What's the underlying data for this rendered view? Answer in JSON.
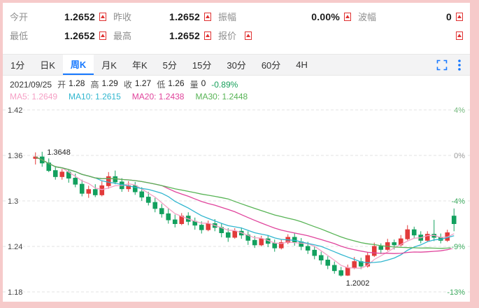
{
  "colors": {
    "frame_bg": "#f6caca",
    "accent_blue": "#1678ff",
    "marker_red": "#e03131",
    "up": "#e23b3b",
    "down": "#12a05e",
    "grid": "#e3e3e3",
    "change_green": "#16a05a"
  },
  "quotes": {
    "rows": [
      {
        "cells": [
          {
            "label": "今开",
            "value": "1.2652",
            "marker": true
          },
          {
            "label": "昨收",
            "value": "1.2652",
            "marker": true
          },
          {
            "label": "振幅",
            "value": "0.00%",
            "marker": true
          },
          {
            "label": "波幅",
            "value": "0",
            "marker": true
          }
        ],
        "end_marker": false
      },
      {
        "cells": [
          {
            "label": "最低",
            "value": "1.2652",
            "marker": true
          },
          {
            "label": "最高",
            "value": "1.2652",
            "marker": true
          },
          {
            "label": "报价",
            "value": "",
            "marker": true
          }
        ],
        "end_marker": true
      }
    ]
  },
  "tabs": {
    "items": [
      "1分",
      "日K",
      "周K",
      "月K",
      "年K",
      "5分",
      "15分",
      "30分",
      "60分",
      "4H"
    ],
    "active_index": 2
  },
  "info": {
    "date": "2021/09/25",
    "fields": [
      {
        "label": "开",
        "value": "1.28"
      },
      {
        "label": "高",
        "value": "1.29"
      },
      {
        "label": "收",
        "value": "1.27"
      },
      {
        "label": "低",
        "value": "1.26"
      },
      {
        "label": "量",
        "value": "0"
      }
    ],
    "change": "-0.89%"
  },
  "ma_legend": [
    {
      "label": "MA5:",
      "value": "1.2649",
      "color": "#f5a0c5"
    },
    {
      "label": "MA10:",
      "value": "1.2615",
      "color": "#30b6cf"
    },
    {
      "label": "MA20:",
      "value": "1.2438",
      "color": "#e0449c"
    },
    {
      "label": "MA30:",
      "value": "1.2448",
      "color": "#58b456"
    }
  ],
  "chart_data": {
    "type": "candlestick",
    "title": "周K (weekly candles)",
    "y_axis_left": [
      "1.42",
      "1.36",
      "1.3",
      "1.24",
      "1.18"
    ],
    "y_axis_right": [
      {
        "text": "4%",
        "color": "#74b97e"
      },
      {
        "text": "0%",
        "color": "#9a9a9a"
      },
      {
        "text": "-4%",
        "color": "#3aa85c"
      },
      {
        "text": "-9%",
        "color": "#3aa85c"
      },
      {
        "text": "-13%",
        "color": "#3aa85c"
      }
    ],
    "price_top": 1.42,
    "price_step": 0.06,
    "grid": true,
    "annotations": [
      {
        "text": "1.3648",
        "index": 1,
        "anchor": "high"
      },
      {
        "text": "1.2002",
        "index": 46,
        "anchor": "low"
      }
    ],
    "ma": [
      {
        "name": "MA5",
        "period": 5,
        "color": "#f5a0c5"
      },
      {
        "name": "MA10",
        "period": 10,
        "color": "#30b6cf"
      },
      {
        "name": "MA20",
        "period": 20,
        "color": "#e0449c"
      },
      {
        "name": "MA30",
        "period": 30,
        "color": "#58b456"
      }
    ],
    "candles": [
      [
        1.356,
        1.364,
        1.348,
        1.358
      ],
      [
        1.358,
        1.3648,
        1.345,
        1.35
      ],
      [
        1.35,
        1.356,
        1.338,
        1.34
      ],
      [
        1.34,
        1.346,
        1.328,
        1.332
      ],
      [
        1.332,
        1.342,
        1.328,
        1.338
      ],
      [
        1.338,
        1.342,
        1.324,
        1.33
      ],
      [
        1.33,
        1.336,
        1.318,
        1.322
      ],
      [
        1.322,
        1.328,
        1.306,
        1.31
      ],
      [
        1.31,
        1.32,
        1.304,
        1.315
      ],
      [
        1.315,
        1.322,
        1.305,
        1.308
      ],
      [
        1.308,
        1.326,
        1.306,
        1.32
      ],
      [
        1.32,
        1.338,
        1.316,
        1.332
      ],
      [
        1.332,
        1.34,
        1.322,
        1.325
      ],
      [
        1.325,
        1.33,
        1.312,
        1.316
      ],
      [
        1.316,
        1.326,
        1.312,
        1.32
      ],
      [
        1.32,
        1.325,
        1.308,
        1.312
      ],
      [
        1.312,
        1.318,
        1.3,
        1.305
      ],
      [
        1.305,
        1.312,
        1.294,
        1.298
      ],
      [
        1.298,
        1.304,
        1.285,
        1.29
      ],
      [
        1.29,
        1.296,
        1.278,
        1.283
      ],
      [
        1.283,
        1.29,
        1.27,
        1.275
      ],
      [
        1.275,
        1.282,
        1.265,
        1.27
      ],
      [
        1.27,
        1.284,
        1.268,
        1.28
      ],
      [
        1.28,
        1.285,
        1.268,
        1.273
      ],
      [
        1.273,
        1.278,
        1.262,
        1.268
      ],
      [
        1.268,
        1.273,
        1.257,
        1.262
      ],
      [
        1.262,
        1.274,
        1.26,
        1.27
      ],
      [
        1.27,
        1.276,
        1.26,
        1.265
      ],
      [
        1.265,
        1.27,
        1.252,
        1.258
      ],
      [
        1.258,
        1.264,
        1.246,
        1.252
      ],
      [
        1.252,
        1.264,
        1.25,
        1.26
      ],
      [
        1.26,
        1.265,
        1.25,
        1.255
      ],
      [
        1.255,
        1.26,
        1.242,
        1.248
      ],
      [
        1.248,
        1.254,
        1.238,
        1.242
      ],
      [
        1.242,
        1.254,
        1.24,
        1.25
      ],
      [
        1.25,
        1.255,
        1.239,
        1.244
      ],
      [
        1.244,
        1.249,
        1.233,
        1.238
      ],
      [
        1.238,
        1.249,
        1.236,
        1.245
      ],
      [
        1.245,
        1.256,
        1.243,
        1.252
      ],
      [
        1.252,
        1.257,
        1.241,
        1.246
      ],
      [
        1.246,
        1.251,
        1.235,
        1.24
      ],
      [
        1.24,
        1.246,
        1.23,
        1.235
      ],
      [
        1.235,
        1.24,
        1.223,
        1.228
      ],
      [
        1.228,
        1.233,
        1.216,
        1.222
      ],
      [
        1.222,
        1.227,
        1.21,
        1.215
      ],
      [
        1.215,
        1.22,
        1.204,
        1.208
      ],
      [
        1.208,
        1.213,
        1.2002,
        1.202
      ],
      [
        1.202,
        1.216,
        1.201,
        1.212
      ],
      [
        1.212,
        1.226,
        1.21,
        1.22
      ],
      [
        1.22,
        1.225,
        1.21,
        1.214
      ],
      [
        1.214,
        1.232,
        1.212,
        1.228
      ],
      [
        1.228,
        1.245,
        1.226,
        1.24
      ],
      [
        1.24,
        1.244,
        1.23,
        1.236
      ],
      [
        1.236,
        1.25,
        1.234,
        1.245
      ],
      [
        1.245,
        1.249,
        1.236,
        1.242
      ],
      [
        1.242,
        1.255,
        1.24,
        1.25
      ],
      [
        1.25,
        1.268,
        1.248,
        1.262
      ],
      [
        1.262,
        1.266,
        1.25,
        1.255
      ],
      [
        1.255,
        1.26,
        1.244,
        1.248
      ],
      [
        1.248,
        1.26,
        1.246,
        1.256
      ],
      [
        1.256,
        1.275,
        1.247,
        1.252
      ],
      [
        1.252,
        1.257,
        1.244,
        1.248
      ],
      [
        1.248,
        1.262,
        1.246,
        1.258
      ],
      [
        1.28,
        1.29,
        1.26,
        1.27
      ]
    ]
  }
}
